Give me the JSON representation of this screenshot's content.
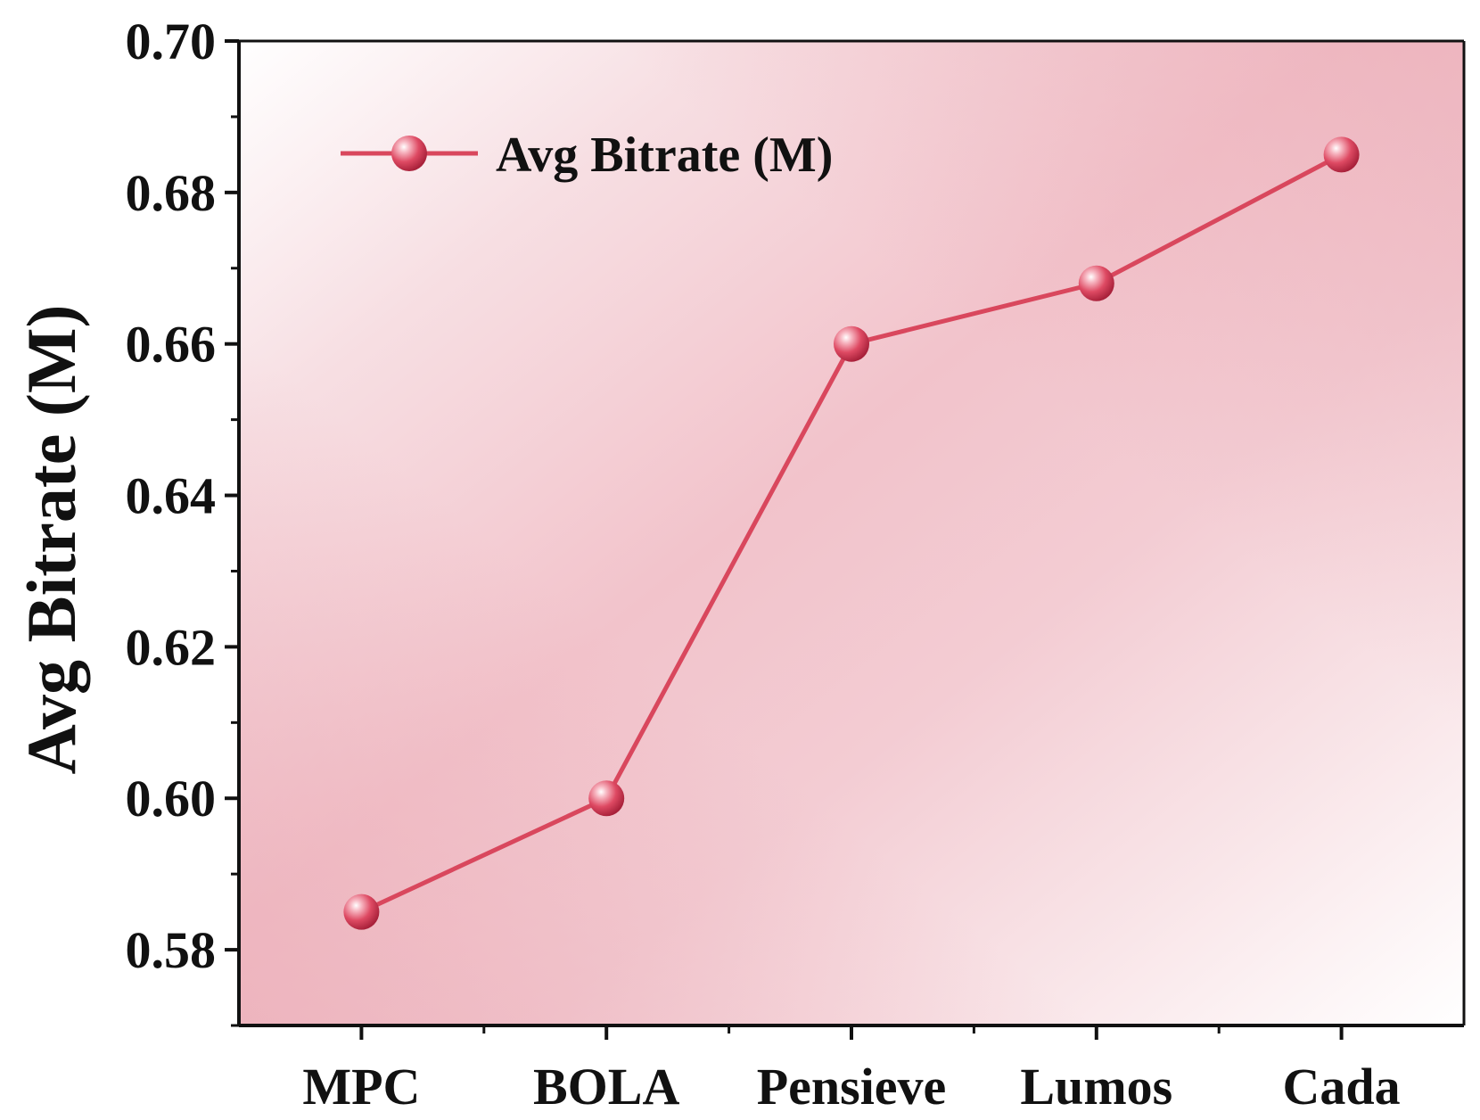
{
  "chart_data": {
    "type": "line",
    "title": "",
    "xlabel": "",
    "ylabel": "Avg Bitrate (M)",
    "categories": [
      "MPC",
      "BOLA",
      "Pensieve",
      "Lumos",
      "Cada"
    ],
    "series": [
      {
        "name": "Avg Bitrate (M)",
        "values": [
          0.585,
          0.6,
          0.66,
          0.668,
          0.685
        ],
        "color": "#d9475d"
      }
    ],
    "ylim": [
      0.57,
      0.7
    ],
    "yticks": [
      0.58,
      0.6,
      0.62,
      0.64,
      0.66,
      0.68,
      0.7
    ],
    "ytick_labels": [
      "0.58",
      "0.60",
      "0.62",
      "0.64",
      "0.66",
      "0.68",
      "0.70"
    ],
    "legend_position": "top-left",
    "grid": false,
    "colors": {
      "line": "#d9475d",
      "marker": "#d83a55",
      "background_light": "#ffffff",
      "background_pink": "#f2c3cb",
      "axis": "#111111"
    }
  }
}
